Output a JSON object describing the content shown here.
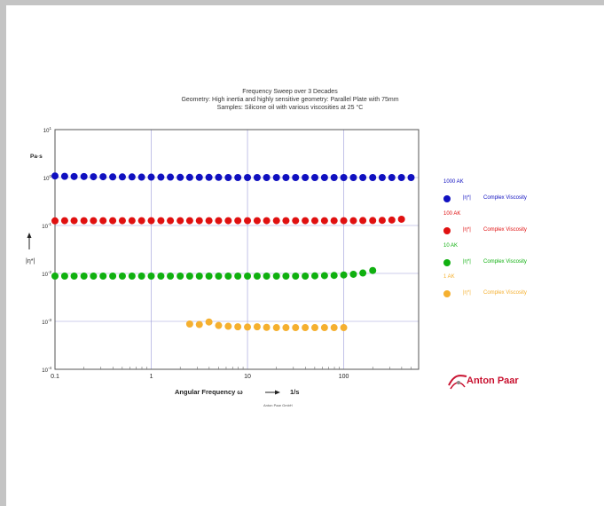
{
  "chart_data": {
    "type": "scatter",
    "title_lines": [
      "Frequency Sweep over 3 Decades",
      "Geometry: High inertia and highly sensitive geometry: Parallel Plate with 75mm",
      "Samples: Silicone oil with various viscosities at 25 °C"
    ],
    "xlabel": "Angular Frequency ω",
    "xunit": "1/s",
    "ylabel": "|η*|",
    "yunit": "Pa·s",
    "xscale": "log",
    "yscale": "log",
    "xlim": [
      0.1,
      600
    ],
    "ylim": [
      0.0001,
      10
    ],
    "x_tick_labels": [
      "0.1",
      "1",
      "10",
      "100"
    ],
    "y_tick_labels": [
      {
        "base": "10",
        "exp": "1"
      },
      {
        "base": "10",
        "exp": "0"
      },
      {
        "base": "10",
        "exp": "-1"
      },
      {
        "base": "10",
        "exp": "-2"
      },
      {
        "base": "10",
        "exp": "-3"
      },
      {
        "base": "10",
        "exp": "-4"
      }
    ],
    "grid": true,
    "legend_position": "right",
    "series": [
      {
        "name": "1000 AK",
        "symbol": "|η*|",
        "description": "Complex Viscosity",
        "color": "#1010c0",
        "x": [
          0.1,
          0.126,
          0.158,
          0.2,
          0.251,
          0.316,
          0.398,
          0.501,
          0.631,
          0.794,
          1.0,
          1.26,
          1.58,
          2.0,
          2.51,
          3.16,
          3.98,
          5.01,
          6.31,
          7.94,
          10.0,
          12.6,
          15.8,
          20.0,
          25.1,
          31.6,
          39.8,
          50.1,
          63.1,
          79.4,
          100,
          126,
          158,
          200,
          251,
          316,
          398,
          501
        ],
        "y": [
          1.08,
          1.06,
          1.05,
          1.05,
          1.04,
          1.04,
          1.03,
          1.03,
          1.03,
          1.02,
          1.02,
          1.02,
          1.02,
          1.01,
          1.01,
          1.01,
          1.01,
          1.01,
          1.0,
          1.0,
          1.0,
          1.0,
          1.0,
          1.0,
          1.0,
          1.0,
          1.0,
          1.0,
          1.0,
          1.0,
          1.0,
          1.0,
          1.0,
          1.0,
          1.0,
          1.0,
          1.0,
          1.0
        ]
      },
      {
        "name": "100 AK",
        "symbol": "|η*|",
        "description": "Complex Viscosity",
        "color": "#e01010",
        "x": [
          0.1,
          0.126,
          0.158,
          0.2,
          0.251,
          0.316,
          0.398,
          0.501,
          0.631,
          0.794,
          1.0,
          1.26,
          1.58,
          2.0,
          2.51,
          3.16,
          3.98,
          5.01,
          6.31,
          7.94,
          10.0,
          12.6,
          15.8,
          20.0,
          25.1,
          31.6,
          39.8,
          50.1,
          63.1,
          79.4,
          100,
          126,
          158,
          200,
          251,
          316,
          398
        ],
        "y": [
          0.125,
          0.126,
          0.126,
          0.126,
          0.126,
          0.126,
          0.126,
          0.126,
          0.126,
          0.126,
          0.126,
          0.126,
          0.126,
          0.126,
          0.126,
          0.126,
          0.126,
          0.126,
          0.126,
          0.126,
          0.126,
          0.126,
          0.126,
          0.126,
          0.126,
          0.126,
          0.126,
          0.126,
          0.126,
          0.126,
          0.126,
          0.126,
          0.127,
          0.127,
          0.128,
          0.13,
          0.135
        ]
      },
      {
        "name": "10 AK",
        "symbol": "|η*|",
        "description": "Complex Viscosity",
        "color": "#10b010",
        "x": [
          0.1,
          0.126,
          0.158,
          0.2,
          0.251,
          0.316,
          0.398,
          0.501,
          0.631,
          0.794,
          1.0,
          1.26,
          1.58,
          2.0,
          2.51,
          3.16,
          3.98,
          5.01,
          6.31,
          7.94,
          10.0,
          12.6,
          15.8,
          20.0,
          25.1,
          31.6,
          39.8,
          50.1,
          63.1,
          79.4,
          100,
          126,
          158,
          200
        ],
        "y": [
          0.0088,
          0.0088,
          0.0088,
          0.0088,
          0.0088,
          0.0088,
          0.0088,
          0.0088,
          0.0088,
          0.0088,
          0.0088,
          0.0088,
          0.0088,
          0.0088,
          0.0088,
          0.0088,
          0.0088,
          0.0088,
          0.0088,
          0.0088,
          0.0088,
          0.0088,
          0.0088,
          0.0088,
          0.0088,
          0.0088,
          0.0088,
          0.0089,
          0.009,
          0.0091,
          0.0093,
          0.0096,
          0.0102,
          0.0115
        ]
      },
      {
        "name": "1 AK",
        "symbol": "|η*|",
        "description": "Complex Viscosity",
        "color": "#f5b030",
        "x": [
          2.51,
          3.16,
          3.98,
          5.01,
          6.31,
          7.94,
          10.0,
          12.6,
          15.8,
          20.0,
          25.1,
          31.6,
          39.8,
          50.1,
          63.1,
          79.4,
          100
        ],
        "y": [
          0.00088,
          0.00086,
          0.00097,
          0.00082,
          0.00079,
          0.00077,
          0.00076,
          0.00077,
          0.00075,
          0.00074,
          0.00074,
          0.00074,
          0.00074,
          0.00074,
          0.00074,
          0.00074,
          0.00074
        ]
      }
    ]
  },
  "logo": {
    "text": "Anton Paar"
  },
  "footer": {
    "text": "Anton Paar GmbH"
  }
}
